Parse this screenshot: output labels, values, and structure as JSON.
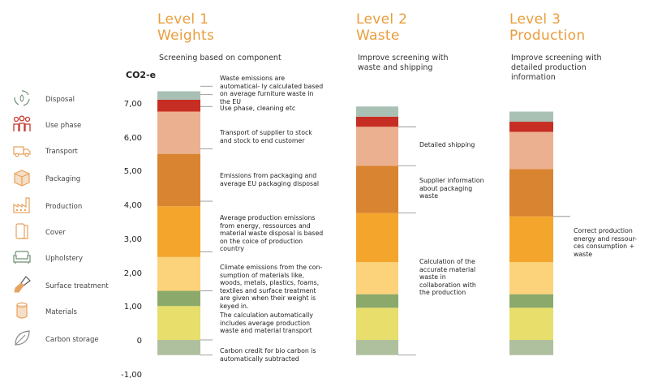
{
  "legend": [
    {
      "label": "Disposal",
      "icon": "recycle-icon"
    },
    {
      "label": "Use phase",
      "icon": "people-icon"
    },
    {
      "label": "Transport",
      "icon": "truck-icon"
    },
    {
      "label": "Packaging",
      "icon": "box-icon"
    },
    {
      "label": "Production",
      "icon": "factory-icon"
    },
    {
      "label": "Cover",
      "icon": "fabric-roll-icon"
    },
    {
      "label": "Upholstery",
      "icon": "sofa-icon"
    },
    {
      "label": "Surface treatment",
      "icon": "brush-icon"
    },
    {
      "label": "Materials",
      "icon": "log-icon"
    },
    {
      "label": "Carbon storage",
      "icon": "leaf-icon"
    }
  ],
  "levels": [
    {
      "title1": "Level 1",
      "title2": "Weights",
      "subtitle": "Screening based on component"
    },
    {
      "title1": "Level 2",
      "title2": "Waste",
      "subtitle": "Improve screening with waste and shipping"
    },
    {
      "title1": "Level 3",
      "title2": "Production",
      "subtitle": "Improve screening with detailed production information"
    }
  ],
  "axis": {
    "label": "CO2-e",
    "ticks": [
      "7,00",
      "6,00",
      "5,00",
      "4,00",
      "3,00",
      "2,00",
      "1,00",
      "0",
      "-1,00"
    ]
  },
  "annotations_l1": [
    "Waste emissions are automatical- ly calculated based on average furniture waste in the EU",
    "Use phase, cleaning etc",
    "Transport of supplier to stock and stock to end customer",
    "Emissions from packaging and average EU packaging disposal",
    "Average production emissions from energy, ressources and material waste disposal is based on the coice of production country",
    "Climate emissions from the con- sumption of materials like, woods, metals, plastics, foams, textiles and surface treatment are given when their weight is keyed in.",
    "The calculation automatically includes average production waste and material transport",
    "Carbon credit for bio carbon is automatically subtracted"
  ],
  "annotations_l2": [
    "Detailed shipping",
    "Supplier information about packaging waste",
    "Calculation of the accurate material waste in collaboration with the production"
  ],
  "annotations_l3": [
    "Correct production energy and ressour- ces consumption + waste"
  ],
  "colors": {
    "accent": "#ea9d3c",
    "disposal": "#a9c1b4",
    "use_phase": "#c62e23",
    "transport": "#ebb090",
    "packaging": "#d98430",
    "production": "#f3a62b",
    "cover": "#fcd27b",
    "upholstery": "#8aa96b",
    "materials": "#e7de6b",
    "carbon_storage": "#afc09e",
    "icon": "#e6a25e",
    "icon_dark": "#c43a32",
    "icon_green": "#6f8f72"
  },
  "chart_data": {
    "type": "bar",
    "stacked": true,
    "ylabel": "CO2-e",
    "ylim": [
      -1,
      7.5
    ],
    "categories": [
      "Level 1 Weights",
      "Level 2 Waste",
      "Level 3 Production"
    ],
    "series": [
      {
        "name": "Carbon storage",
        "values": [
          -0.45,
          -0.45,
          -0.45
        ]
      },
      {
        "name": "Materials",
        "values": [
          1.0,
          0.95,
          0.95
        ]
      },
      {
        "name": "Surface treatment",
        "values": [
          0.45,
          0.4,
          0.4
        ]
      },
      {
        "name": "Upholstery",
        "values": [
          0.0,
          0.0,
          0.0
        ]
      },
      {
        "name": "Cover",
        "values": [
          1.0,
          0.95,
          0.95
        ]
      },
      {
        "name": "Production",
        "values": [
          1.5,
          1.45,
          1.35
        ]
      },
      {
        "name": "Packaging",
        "values": [
          1.55,
          1.4,
          1.4
        ]
      },
      {
        "name": "Transport",
        "values": [
          1.25,
          1.15,
          1.1
        ]
      },
      {
        "name": "Use phase",
        "values": [
          0.35,
          0.3,
          0.3
        ]
      },
      {
        "name": "Disposal",
        "values": [
          0.25,
          0.3,
          0.3
        ]
      }
    ]
  }
}
